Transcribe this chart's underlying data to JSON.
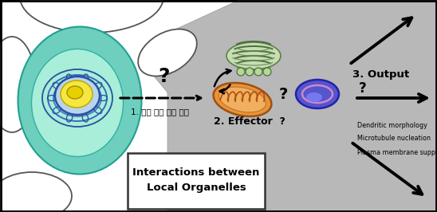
{
  "bg_color": "#ffffff",
  "cell_body_color": "#7dd9c8",
  "nucleus_inner_color": "#f5e642",
  "golgi_color1": "#8ab87a",
  "golgi_color2": "#9ac88a",
  "golgi_color3": "#7aa86a",
  "mito_color_outer": "#e8943a",
  "mito_color_inner": "#f0b060",
  "lysosome_color": "#5555cc",
  "lysosome_ring": "#cc88cc",
  "text_korean": "1. 원격 조절 매개 인자",
  "text_effector": "2. Effector  ?",
  "text_output": "3. Output",
  "text_output1": "Plasma membrane supply",
  "text_output2": "Microtubule nucleation",
  "text_output3": "Dendritic morphology",
  "text_box1": "Interactions between",
  "text_box2": "Local Organelles",
  "arrow_color": "#111111"
}
